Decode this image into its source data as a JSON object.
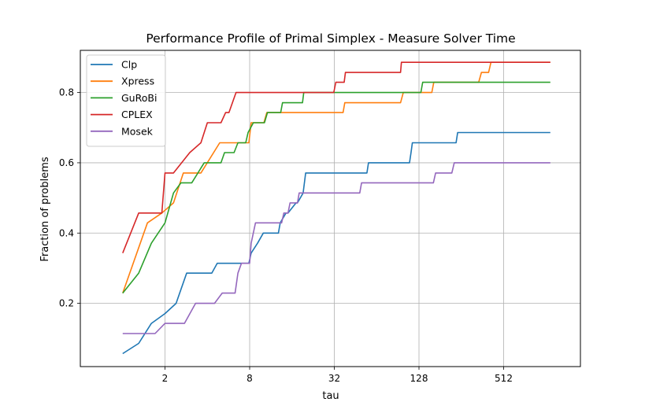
{
  "chart_data": {
    "type": "line",
    "title": "Performance Profile of Primal Simplex - Measure Solver Time",
    "xlabel": "tau",
    "ylabel": "Fraction of problems",
    "xscale": "log2",
    "xlim": [
      0.5,
      1800
    ],
    "ylim": [
      0.02,
      0.92
    ],
    "xticks": [
      2,
      8,
      32,
      128,
      512
    ],
    "xtick_labels": [
      "2",
      "8",
      "32",
      "128",
      "512"
    ],
    "yticks": [
      0.2,
      0.4,
      0.6,
      0.8
    ],
    "ytick_labels": [
      "0.2",
      "0.4",
      "0.6",
      "0.8"
    ],
    "grid": true,
    "legend_position": "top-left",
    "series": [
      {
        "name": "Clp",
        "color": "#1f77b4",
        "x": [
          1,
          1.3,
          1.6,
          2.0,
          2.4,
          2.85,
          4.3,
          4.7,
          7.9,
          8.2,
          9.1,
          10.0,
          12.8,
          13.2,
          14.5,
          15.0,
          17.1,
          17.5,
          19.2,
          20.0,
          26.7,
          54.6,
          56.0,
          109.6,
          112.3,
          114.9,
          235,
          241,
          1100
        ],
        "y": [
          0.057,
          0.086,
          0.143,
          0.171,
          0.2,
          0.286,
          0.286,
          0.314,
          0.314,
          0.343,
          0.371,
          0.4,
          0.4,
          0.429,
          0.457,
          0.457,
          0.486,
          0.486,
          0.514,
          0.571,
          0.571,
          0.571,
          0.6,
          0.6,
          0.629,
          0.657,
          0.657,
          0.686,
          0.686
        ]
      },
      {
        "name": "Xpress",
        "color": "#ff7f0e",
        "x": [
          1,
          1.5,
          1.9,
          2.3,
          2.7,
          3.6,
          4.9,
          7.2,
          7.9,
          8.2,
          10.1,
          10.6,
          31.9,
          36.9,
          38,
          94.6,
          99.0,
          158,
          163,
          340,
          356,
          400,
          416,
          1100
        ],
        "y": [
          0.229,
          0.429,
          0.457,
          0.486,
          0.571,
          0.571,
          0.657,
          0.657,
          0.657,
          0.714,
          0.714,
          0.743,
          0.743,
          0.743,
          0.771,
          0.771,
          0.8,
          0.8,
          0.829,
          0.829,
          0.857,
          0.857,
          0.886,
          0.886
        ]
      },
      {
        "name": "GuRoBi",
        "color": "#2ca02c",
        "x": [
          1,
          1.3,
          1.6,
          2.0,
          2.3,
          2.6,
          3.1,
          3.8,
          5.0,
          5.3,
          6.2,
          6.6,
          7.5,
          7.8,
          8.5,
          10.2,
          10.7,
          13.3,
          13.7,
          19.0,
          19.4,
          113.8,
          117,
          132,
          136,
          340,
          356,
          1100
        ],
        "y": [
          0.229,
          0.286,
          0.371,
          0.429,
          0.514,
          0.543,
          0.543,
          0.6,
          0.6,
          0.629,
          0.629,
          0.657,
          0.657,
          0.686,
          0.714,
          0.714,
          0.743,
          0.743,
          0.771,
          0.771,
          0.8,
          0.8,
          0.8,
          0.8,
          0.829,
          0.829,
          0.829,
          0.829
        ]
      },
      {
        "name": "CPLEX",
        "color": "#d62728",
        "x": [
          1,
          1.3,
          1.6,
          1.9,
          2.0,
          2.3,
          3.0,
          3.6,
          4.0,
          5.0,
          5.4,
          5.7,
          6.4,
          25.0,
          31.7,
          32.8,
          37.6,
          38.4,
          94.6,
          96.0,
          161,
          340,
          1100
        ],
        "y": [
          0.343,
          0.457,
          0.457,
          0.457,
          0.571,
          0.571,
          0.629,
          0.657,
          0.714,
          0.714,
          0.743,
          0.743,
          0.8,
          0.8,
          0.8,
          0.829,
          0.829,
          0.857,
          0.857,
          0.886,
          0.886,
          0.886,
          0.886
        ]
      },
      {
        "name": "Mosek",
        "color": "#9467bd",
        "x": [
          1,
          1.7,
          2.0,
          2.75,
          3.3,
          4.5,
          5.1,
          6.3,
          6.6,
          7.0,
          8.0,
          8.2,
          8.8,
          13.5,
          14.0,
          15.0,
          15.5,
          17.5,
          18.0,
          26.0,
          48.5,
          50.0,
          162,
          168,
          219,
          228,
          1100
        ],
        "y": [
          0.114,
          0.114,
          0.143,
          0.143,
          0.2,
          0.2,
          0.229,
          0.229,
          0.286,
          0.314,
          0.314,
          0.371,
          0.429,
          0.429,
          0.457,
          0.457,
          0.486,
          0.486,
          0.514,
          0.514,
          0.514,
          0.543,
          0.543,
          0.571,
          0.571,
          0.6,
          0.6
        ]
      }
    ]
  }
}
